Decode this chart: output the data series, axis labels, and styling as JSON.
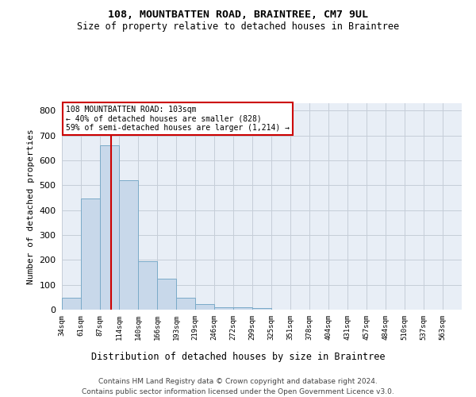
{
  "title": "108, MOUNTBATTEN ROAD, BRAINTREE, CM7 9UL",
  "subtitle": "Size of property relative to detached houses in Braintree",
  "xlabel": "Distribution of detached houses by size in Braintree",
  "ylabel": "Number of detached properties",
  "tick_labels": [
    "34sqm",
    "61sqm",
    "87sqm",
    "114sqm",
    "140sqm",
    "166sqm",
    "193sqm",
    "219sqm",
    "246sqm",
    "272sqm",
    "299sqm",
    "325sqm",
    "351sqm",
    "378sqm",
    "404sqm",
    "431sqm",
    "457sqm",
    "484sqm",
    "510sqm",
    "537sqm",
    "563sqm"
  ],
  "bin_values": [
    34,
    61,
    87,
    114,
    140,
    166,
    193,
    219,
    246,
    272,
    299,
    325,
    351,
    378,
    404,
    431,
    457,
    484,
    510,
    537,
    563
  ],
  "heights": [
    47,
    447,
    661,
    520,
    196,
    125,
    47,
    23,
    10,
    10,
    5,
    0,
    0,
    0,
    0,
    0,
    0,
    0,
    0,
    0,
    0
  ],
  "bar_color": "#c8d8ea",
  "bar_edge_color": "#7aaac8",
  "grid_color": "#c5cdd8",
  "bg_color": "#e8eef6",
  "line_color": "#cc0000",
  "annotation_line1": "108 MOUNTBATTEN ROAD: 103sqm",
  "annotation_line2": "← 40% of detached houses are smaller (828)",
  "annotation_line3": "59% of semi-detached houses are larger (1,214) →",
  "property_sqm": 103,
  "ylim": [
    0,
    830
  ],
  "yticks": [
    0,
    100,
    200,
    300,
    400,
    500,
    600,
    700,
    800
  ],
  "footer1": "Contains HM Land Registry data © Crown copyright and database right 2024.",
  "footer2": "Contains public sector information licensed under the Open Government Licence v3.0."
}
